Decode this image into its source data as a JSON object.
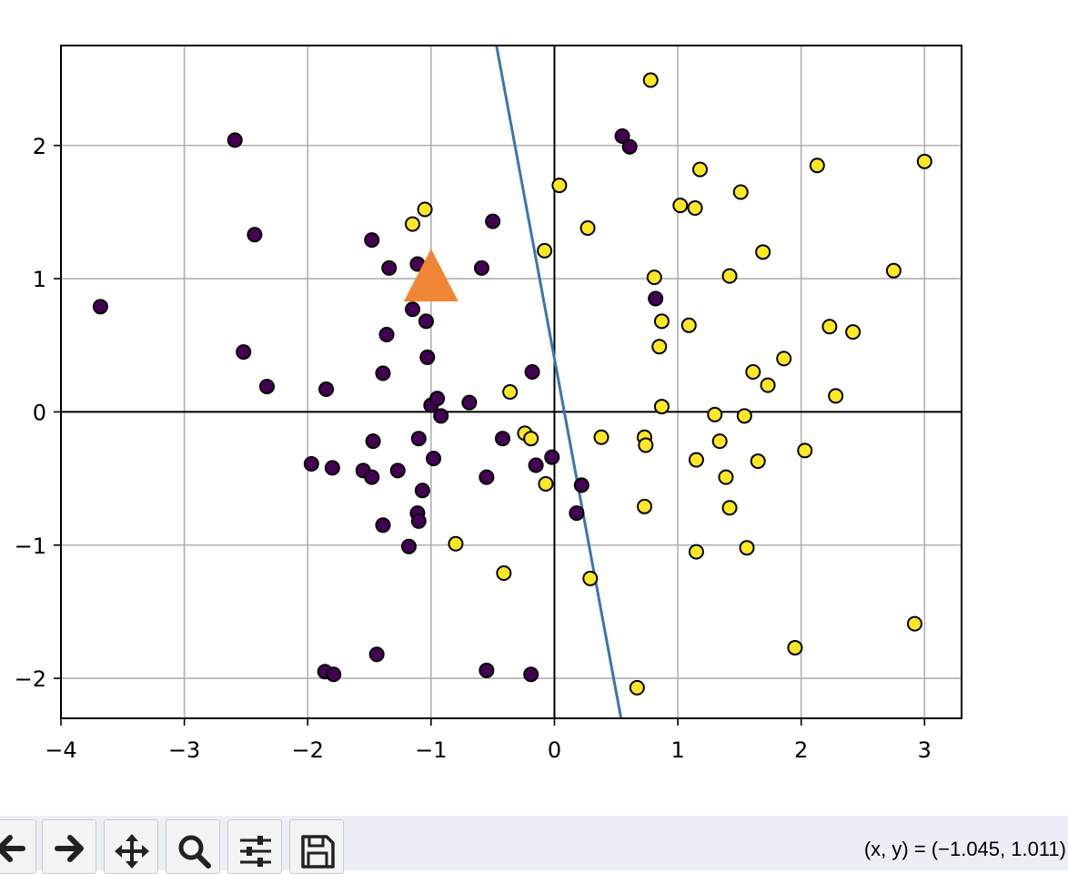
{
  "chart_data": {
    "type": "scatter",
    "title": "",
    "xlabel": "",
    "ylabel": "",
    "xlim": [
      -4.0,
      3.3
    ],
    "ylim": [
      -2.3,
      2.75
    ],
    "grid": true,
    "xticks": [
      -4,
      -3,
      -2,
      -1,
      0,
      1,
      2,
      3
    ],
    "yticks": [
      -2,
      -1,
      0,
      1,
      2
    ],
    "xtick_labels": [
      "−4",
      "−3",
      "−2",
      "−1",
      "0",
      "1",
      "2",
      "3"
    ],
    "ytick_labels": [
      "−2",
      "−1",
      "0",
      "1",
      "2"
    ],
    "axes_lines": {
      "x": 0,
      "y": 0
    },
    "colors": {
      "class0": "#440154",
      "class1": "#fde725",
      "line": "#3b75af",
      "marker": "#ef8636"
    },
    "series": [
      {
        "class": 0,
        "points": [
          [
            -3.68,
            0.79
          ],
          [
            -2.59,
            2.04
          ],
          [
            -2.43,
            1.33
          ],
          [
            -2.52,
            0.45
          ],
          [
            -2.33,
            0.19
          ],
          [
            -1.85,
            0.17
          ],
          [
            -1.97,
            -0.39
          ],
          [
            -1.8,
            -0.42
          ],
          [
            -1.86,
            -1.95
          ],
          [
            -1.79,
            -1.97
          ],
          [
            -1.48,
            1.29
          ],
          [
            -1.34,
            1.08
          ],
          [
            -1.36,
            0.58
          ],
          [
            -1.39,
            0.29
          ],
          [
            -1.47,
            -0.22
          ],
          [
            -1.55,
            -0.44
          ],
          [
            -1.48,
            -0.49
          ],
          [
            -1.27,
            -0.44
          ],
          [
            -1.39,
            -0.85
          ],
          [
            -1.44,
            -1.82
          ],
          [
            -1.11,
            1.11
          ],
          [
            -1.15,
            0.77
          ],
          [
            -1.04,
            0.68
          ],
          [
            -1.03,
            0.41
          ],
          [
            -1.0,
            0.05
          ],
          [
            -0.95,
            0.1
          ],
          [
            -0.92,
            -0.03
          ],
          [
            -1.1,
            -0.2
          ],
          [
            -0.98,
            -0.35
          ],
          [
            -1.07,
            -0.59
          ],
          [
            -1.11,
            -0.76
          ],
          [
            -1.1,
            -0.82
          ],
          [
            -1.18,
            -1.01
          ],
          [
            -0.59,
            1.08
          ],
          [
            -0.5,
            1.43
          ],
          [
            -0.69,
            0.07
          ],
          [
            -0.42,
            -0.2
          ],
          [
            -0.55,
            -0.49
          ],
          [
            -0.55,
            -1.94
          ],
          [
            -0.18,
            0.3
          ],
          [
            -0.15,
            -0.4
          ],
          [
            -0.02,
            -0.34
          ],
          [
            -0.19,
            -1.97
          ],
          [
            0.22,
            -0.55
          ],
          [
            0.18,
            -0.76
          ],
          [
            0.55,
            2.07
          ],
          [
            0.61,
            1.99
          ],
          [
            0.82,
            0.85
          ]
        ]
      },
      {
        "class": 1,
        "points": [
          [
            -1.05,
            1.52
          ],
          [
            -1.15,
            1.41
          ],
          [
            -0.8,
            -0.99
          ],
          [
            -0.41,
            -1.21
          ],
          [
            -0.36,
            0.15
          ],
          [
            -0.24,
            -0.16
          ],
          [
            -0.19,
            -0.2
          ],
          [
            -0.07,
            -0.54
          ],
          [
            -0.08,
            1.21
          ],
          [
            0.04,
            1.7
          ],
          [
            0.27,
            1.38
          ],
          [
            0.38,
            -0.19
          ],
          [
            0.29,
            -1.25
          ],
          [
            0.67,
            -2.07
          ],
          [
            0.78,
            2.49
          ],
          [
            0.81,
            1.01
          ],
          [
            0.87,
            0.68
          ],
          [
            0.85,
            0.49
          ],
          [
            0.87,
            0.04
          ],
          [
            0.73,
            -0.19
          ],
          [
            0.74,
            -0.25
          ],
          [
            0.73,
            -0.71
          ],
          [
            1.02,
            1.55
          ],
          [
            1.14,
            1.53
          ],
          [
            1.18,
            1.82
          ],
          [
            1.09,
            0.65
          ],
          [
            1.3,
            -0.02
          ],
          [
            1.34,
            -0.22
          ],
          [
            1.15,
            -0.36
          ],
          [
            1.39,
            -0.49
          ],
          [
            1.42,
            -0.72
          ],
          [
            1.15,
            -1.05
          ],
          [
            1.51,
            1.65
          ],
          [
            1.42,
            1.02
          ],
          [
            1.69,
            1.2
          ],
          [
            1.61,
            0.3
          ],
          [
            1.73,
            0.2
          ],
          [
            1.54,
            -0.03
          ],
          [
            1.65,
            -0.37
          ],
          [
            1.56,
            -1.02
          ],
          [
            1.86,
            0.4
          ],
          [
            2.13,
            1.85
          ],
          [
            2.23,
            0.64
          ],
          [
            2.28,
            0.12
          ],
          [
            2.03,
            -0.29
          ],
          [
            1.95,
            -1.77
          ],
          [
            2.42,
            0.6
          ],
          [
            2.75,
            1.06
          ],
          [
            3.0,
            1.88
          ],
          [
            2.92,
            -1.59
          ]
        ]
      }
    ],
    "decision_line": [
      [
        -0.47,
        2.75
      ],
      [
        0.54,
        -2.3
      ]
    ],
    "highlight_marker": {
      "shape": "triangle",
      "x": -1.0,
      "y": 1.02
    }
  },
  "toolbar": {
    "buttons": [
      "back-icon",
      "forward-icon",
      "pan-icon",
      "zoom-icon",
      "configure-icon",
      "save-icon"
    ]
  },
  "status": {
    "coords_text": "(x, y) = (−1.045, 1.011)"
  }
}
